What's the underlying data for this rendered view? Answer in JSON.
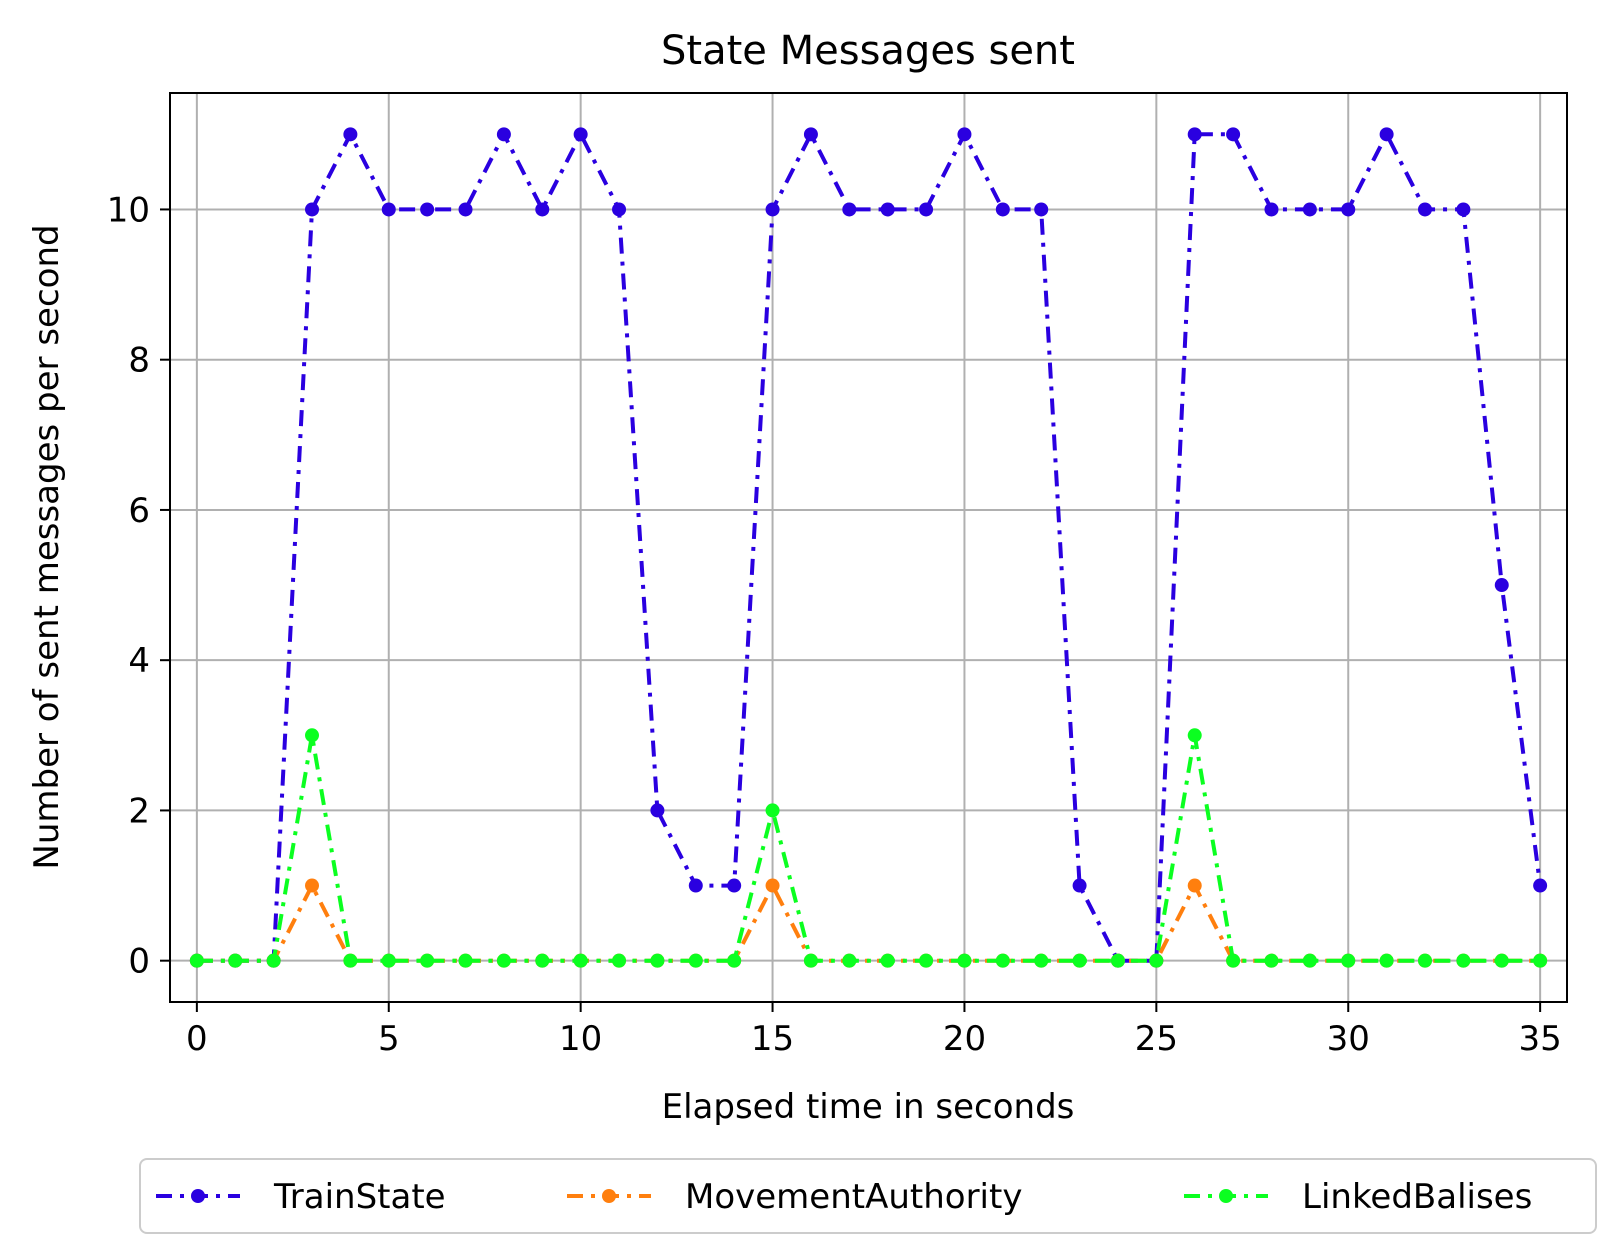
{
  "chart_data": {
    "type": "line",
    "title": "State Messages sent",
    "xlabel": "Elapsed time in seconds",
    "ylabel": "Number of sent messages per second",
    "xlim": [
      -0.7,
      35.7
    ],
    "ylim": [
      -0.55,
      11.55
    ],
    "xticks": [
      0,
      5,
      10,
      15,
      20,
      25,
      30,
      35
    ],
    "yticks": [
      0,
      2,
      4,
      6,
      8,
      10
    ],
    "grid": true,
    "legend_position": "bottom-center",
    "x": [
      0,
      1,
      2,
      3,
      4,
      5,
      6,
      7,
      8,
      9,
      10,
      11,
      12,
      13,
      14,
      15,
      16,
      17,
      18,
      19,
      20,
      21,
      22,
      23,
      24,
      25,
      26,
      27,
      28,
      29,
      30,
      31,
      32,
      33,
      34,
      35
    ],
    "series": [
      {
        "name": "TrainState",
        "color": "#2a00e0",
        "line_style": "dash-dot",
        "values": [
          0,
          0,
          0,
          10,
          11,
          10,
          10,
          10,
          11,
          10,
          11,
          10,
          2,
          1,
          1,
          10,
          11,
          10,
          10,
          10,
          11,
          10,
          10,
          1,
          0,
          0,
          11,
          11,
          10,
          10,
          10,
          11,
          10,
          10,
          5,
          1
        ]
      },
      {
        "name": "MovementAuthority",
        "color": "#ff7f0e",
        "line_style": "dash-dot",
        "values": [
          0,
          0,
          0,
          1,
          0,
          0,
          0,
          0,
          0,
          0,
          0,
          0,
          0,
          0,
          0,
          1,
          0,
          0,
          0,
          0,
          0,
          0,
          0,
          0,
          0,
          0,
          1,
          0,
          0,
          0,
          0,
          0,
          0,
          0,
          0,
          0
        ]
      },
      {
        "name": "LinkedBalises",
        "color": "#0bff20",
        "line_style": "dash-dot",
        "values": [
          0,
          0,
          0,
          3,
          0,
          0,
          0,
          0,
          0,
          0,
          0,
          0,
          0,
          0,
          0,
          2,
          0,
          0,
          0,
          0,
          0,
          0,
          0,
          0,
          0,
          0,
          3,
          0,
          0,
          0,
          0,
          0,
          0,
          0,
          0,
          0
        ]
      }
    ]
  }
}
